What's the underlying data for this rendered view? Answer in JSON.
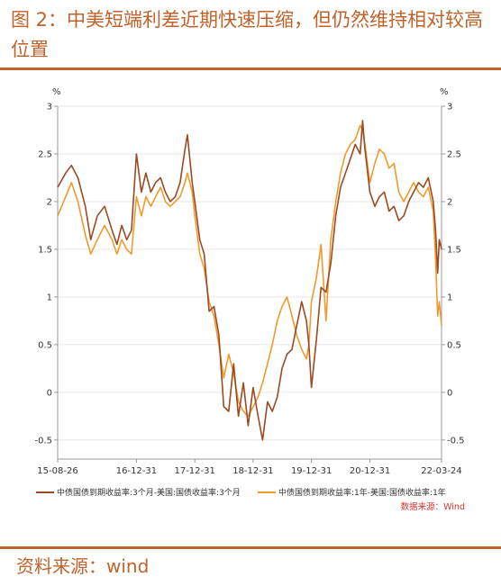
{
  "heading": "图 2：中美短端利差近期快速压缩，但仍然维持相对较高位置",
  "source_line": "资料来源：wind",
  "colors": {
    "accent": "#c0622a",
    "series1": "#9b4a22",
    "series2": "#ef9a2e",
    "note": "#e03030"
  },
  "chart_data": {
    "type": "line",
    "y_unit_left": "%",
    "y_unit_right": "%",
    "ylim": [
      -0.7,
      3.0
    ],
    "y_ticks": [
      -0.5,
      0,
      0.5,
      1,
      1.5,
      2,
      2.5,
      3
    ],
    "y_tick_labels": [
      "-0.5",
      "0",
      "0.5",
      "1",
      "1.5",
      "2",
      "2.5",
      "3"
    ],
    "x_start": "2015-08-26",
    "x_end": "2022-03-24",
    "x_ticks": [
      "2015-08-26",
      "2016-12-31",
      "2017-12-31",
      "2018-12-31",
      "2019-12-31",
      "2020-12-31",
      "2022-03-24"
    ],
    "x_tick_labels": [
      "15-08-26",
      "16-12-31",
      "17-12-31",
      "18-12-31",
      "19-12-31",
      "20-12-31",
      "22-03-24"
    ],
    "grid": true,
    "legend_position": "bottom",
    "source_note": "数据来源：Wind",
    "series": [
      {
        "name": "中债国债到期收益率:3个月-美国:国债收益率:3个月",
        "points": [
          [
            "2015-08-26",
            2.15
          ],
          [
            "2015-10-15",
            2.3
          ],
          [
            "2015-11-20",
            2.38
          ],
          [
            "2015-12-31",
            2.25
          ],
          [
            "2016-02-15",
            1.95
          ],
          [
            "2016-03-20",
            1.6
          ],
          [
            "2016-04-30",
            1.85
          ],
          [
            "2016-06-15",
            1.95
          ],
          [
            "2016-07-31",
            1.7
          ],
          [
            "2016-08-31",
            1.55
          ],
          [
            "2016-09-30",
            1.75
          ],
          [
            "2016-10-31",
            1.6
          ],
          [
            "2016-11-30",
            1.7
          ],
          [
            "2016-12-31",
            2.5
          ],
          [
            "2017-01-31",
            2.1
          ],
          [
            "2017-02-28",
            2.3
          ],
          [
            "2017-03-31",
            2.1
          ],
          [
            "2017-04-30",
            2.2
          ],
          [
            "2017-05-31",
            2.25
          ],
          [
            "2017-06-30",
            2.1
          ],
          [
            "2017-07-31",
            2.0
          ],
          [
            "2017-08-31",
            2.05
          ],
          [
            "2017-09-30",
            2.2
          ],
          [
            "2017-10-31",
            2.55
          ],
          [
            "2017-11-15",
            2.7
          ],
          [
            "2017-12-15",
            2.2
          ],
          [
            "2017-12-31",
            2.0
          ],
          [
            "2018-01-31",
            1.6
          ],
          [
            "2018-02-28",
            1.45
          ],
          [
            "2018-03-31",
            0.85
          ],
          [
            "2018-04-30",
            0.9
          ],
          [
            "2018-05-31",
            0.6
          ],
          [
            "2018-06-30",
            -0.15
          ],
          [
            "2018-07-31",
            -0.2
          ],
          [
            "2018-08-31",
            0.3
          ],
          [
            "2018-09-30",
            -0.25
          ],
          [
            "2018-10-31",
            0.1
          ],
          [
            "2018-11-30",
            -0.35
          ],
          [
            "2018-12-31",
            0.05
          ],
          [
            "2019-01-31",
            -0.25
          ],
          [
            "2019-02-28",
            -0.5
          ],
          [
            "2019-03-31",
            -0.1
          ],
          [
            "2019-04-30",
            -0.2
          ],
          [
            "2019-05-31",
            -0.05
          ],
          [
            "2019-06-30",
            0.25
          ],
          [
            "2019-07-31",
            0.4
          ],
          [
            "2019-08-31",
            0.45
          ],
          [
            "2019-09-30",
            0.7
          ],
          [
            "2019-10-31",
            0.95
          ],
          [
            "2019-11-30",
            0.75
          ],
          [
            "2019-12-15",
            0.5
          ],
          [
            "2019-12-31",
            0.05
          ],
          [
            "2020-01-31",
            0.55
          ],
          [
            "2020-02-29",
            1.1
          ],
          [
            "2020-03-31",
            1.05
          ],
          [
            "2020-04-30",
            1.35
          ],
          [
            "2020-05-31",
            1.85
          ],
          [
            "2020-06-30",
            2.15
          ],
          [
            "2020-07-31",
            2.3
          ],
          [
            "2020-08-31",
            2.45
          ],
          [
            "2020-09-30",
            2.6
          ],
          [
            "2020-10-31",
            2.5
          ],
          [
            "2020-11-15",
            2.85
          ],
          [
            "2020-11-30",
            2.55
          ],
          [
            "2020-12-31",
            2.1
          ],
          [
            "2021-01-31",
            1.95
          ],
          [
            "2021-02-28",
            2.05
          ],
          [
            "2021-03-31",
            2.1
          ],
          [
            "2021-04-30",
            1.9
          ],
          [
            "2021-05-31",
            1.95
          ],
          [
            "2021-06-30",
            1.8
          ],
          [
            "2021-07-31",
            1.85
          ],
          [
            "2021-08-31",
            2.0
          ],
          [
            "2021-09-30",
            2.1
          ],
          [
            "2021-10-31",
            2.2
          ],
          [
            "2021-11-30",
            2.15
          ],
          [
            "2021-12-31",
            2.25
          ],
          [
            "2022-01-31",
            2.0
          ],
          [
            "2022-02-15",
            1.7
          ],
          [
            "2022-02-28",
            1.25
          ],
          [
            "2022-03-10",
            1.6
          ],
          [
            "2022-03-24",
            1.5
          ]
        ]
      },
      {
        "name": "中债国债到期收益率:1年-美国:国债收益率:1年",
        "points": [
          [
            "2015-08-26",
            1.85
          ],
          [
            "2015-10-15",
            2.05
          ],
          [
            "2015-11-20",
            2.2
          ],
          [
            "2015-12-31",
            2.0
          ],
          [
            "2016-02-15",
            1.65
          ],
          [
            "2016-03-20",
            1.45
          ],
          [
            "2016-04-30",
            1.6
          ],
          [
            "2016-06-15",
            1.75
          ],
          [
            "2016-07-31",
            1.6
          ],
          [
            "2016-08-31",
            1.45
          ],
          [
            "2016-09-30",
            1.6
          ],
          [
            "2016-10-31",
            1.5
          ],
          [
            "2016-11-30",
            1.45
          ],
          [
            "2016-12-31",
            2.05
          ],
          [
            "2017-01-31",
            1.85
          ],
          [
            "2017-02-28",
            2.05
          ],
          [
            "2017-03-31",
            1.95
          ],
          [
            "2017-04-30",
            2.05
          ],
          [
            "2017-05-31",
            2.15
          ],
          [
            "2017-06-30",
            2.0
          ],
          [
            "2017-07-31",
            1.95
          ],
          [
            "2017-08-31",
            2.0
          ],
          [
            "2017-09-30",
            2.05
          ],
          [
            "2017-10-31",
            2.2
          ],
          [
            "2017-11-15",
            2.3
          ],
          [
            "2017-12-15",
            2.1
          ],
          [
            "2017-12-31",
            1.85
          ],
          [
            "2018-01-31",
            1.45
          ],
          [
            "2018-02-28",
            1.3
          ],
          [
            "2018-03-31",
            0.95
          ],
          [
            "2018-04-30",
            0.8
          ],
          [
            "2018-05-31",
            0.5
          ],
          [
            "2018-06-30",
            0.15
          ],
          [
            "2018-07-31",
            0.4
          ],
          [
            "2018-08-31",
            0.2
          ],
          [
            "2018-09-30",
            -0.1
          ],
          [
            "2018-10-31",
            -0.2
          ],
          [
            "2018-11-30",
            -0.25
          ],
          [
            "2018-12-31",
            -0.15
          ],
          [
            "2019-01-31",
            -0.05
          ],
          [
            "2019-02-28",
            0.1
          ],
          [
            "2019-03-31",
            0.3
          ],
          [
            "2019-04-30",
            0.5
          ],
          [
            "2019-05-31",
            0.75
          ],
          [
            "2019-06-30",
            0.9
          ],
          [
            "2019-07-31",
            1.0
          ],
          [
            "2019-08-31",
            0.8
          ],
          [
            "2019-09-30",
            0.6
          ],
          [
            "2019-10-31",
            0.45
          ],
          [
            "2019-11-30",
            0.35
          ],
          [
            "2019-12-15",
            0.5
          ],
          [
            "2019-12-31",
            0.95
          ],
          [
            "2020-01-31",
            1.2
          ],
          [
            "2020-02-29",
            1.55
          ],
          [
            "2020-03-31",
            0.75
          ],
          [
            "2020-04-30",
            1.6
          ],
          [
            "2020-05-31",
            2.0
          ],
          [
            "2020-06-30",
            2.3
          ],
          [
            "2020-07-31",
            2.5
          ],
          [
            "2020-08-31",
            2.6
          ],
          [
            "2020-09-30",
            2.65
          ],
          [
            "2020-10-31",
            2.8
          ],
          [
            "2020-11-15",
            2.75
          ],
          [
            "2020-11-30",
            2.6
          ],
          [
            "2020-12-31",
            2.2
          ],
          [
            "2021-01-31",
            2.4
          ],
          [
            "2021-02-28",
            2.55
          ],
          [
            "2021-03-31",
            2.5
          ],
          [
            "2021-04-30",
            2.35
          ],
          [
            "2021-05-31",
            2.4
          ],
          [
            "2021-06-30",
            2.1
          ],
          [
            "2021-07-31",
            2.0
          ],
          [
            "2021-08-31",
            2.1
          ],
          [
            "2021-09-30",
            2.2
          ],
          [
            "2021-10-31",
            2.1
          ],
          [
            "2021-11-30",
            2.05
          ],
          [
            "2021-12-31",
            2.15
          ],
          [
            "2022-01-31",
            1.9
          ],
          [
            "2022-02-15",
            1.4
          ],
          [
            "2022-02-28",
            0.8
          ],
          [
            "2022-03-10",
            0.95
          ],
          [
            "2022-03-24",
            0.7
          ]
        ]
      }
    ]
  }
}
